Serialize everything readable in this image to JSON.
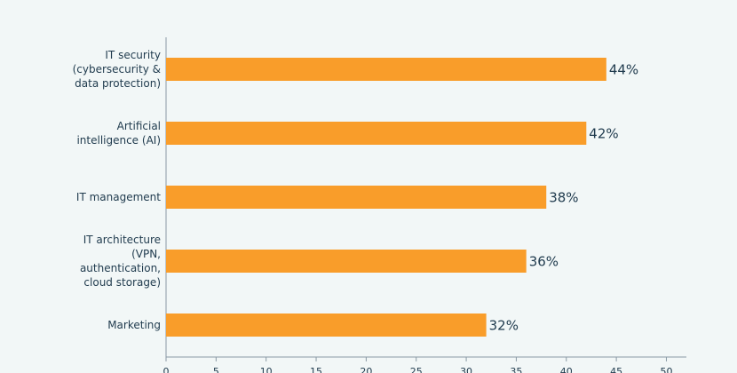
{
  "chart_data": {
    "type": "bar",
    "orientation": "horizontal",
    "categories": [
      "IT security\n(cybersecurity &\ndata protection)",
      "Artificial\nintelligence (AI)",
      "IT management",
      "IT architecture\n(VPN,\nauthentication,\ncloud storage)",
      "Marketing"
    ],
    "values": [
      44,
      42,
      38,
      36,
      32
    ],
    "value_labels": [
      "44%",
      "42%",
      "38%",
      "36%",
      "32%"
    ],
    "color": "#f99d2a",
    "xlim": [
      0,
      52
    ],
    "xticks": [
      0,
      5,
      10,
      15,
      20,
      25,
      30,
      35,
      40,
      45,
      50
    ]
  }
}
